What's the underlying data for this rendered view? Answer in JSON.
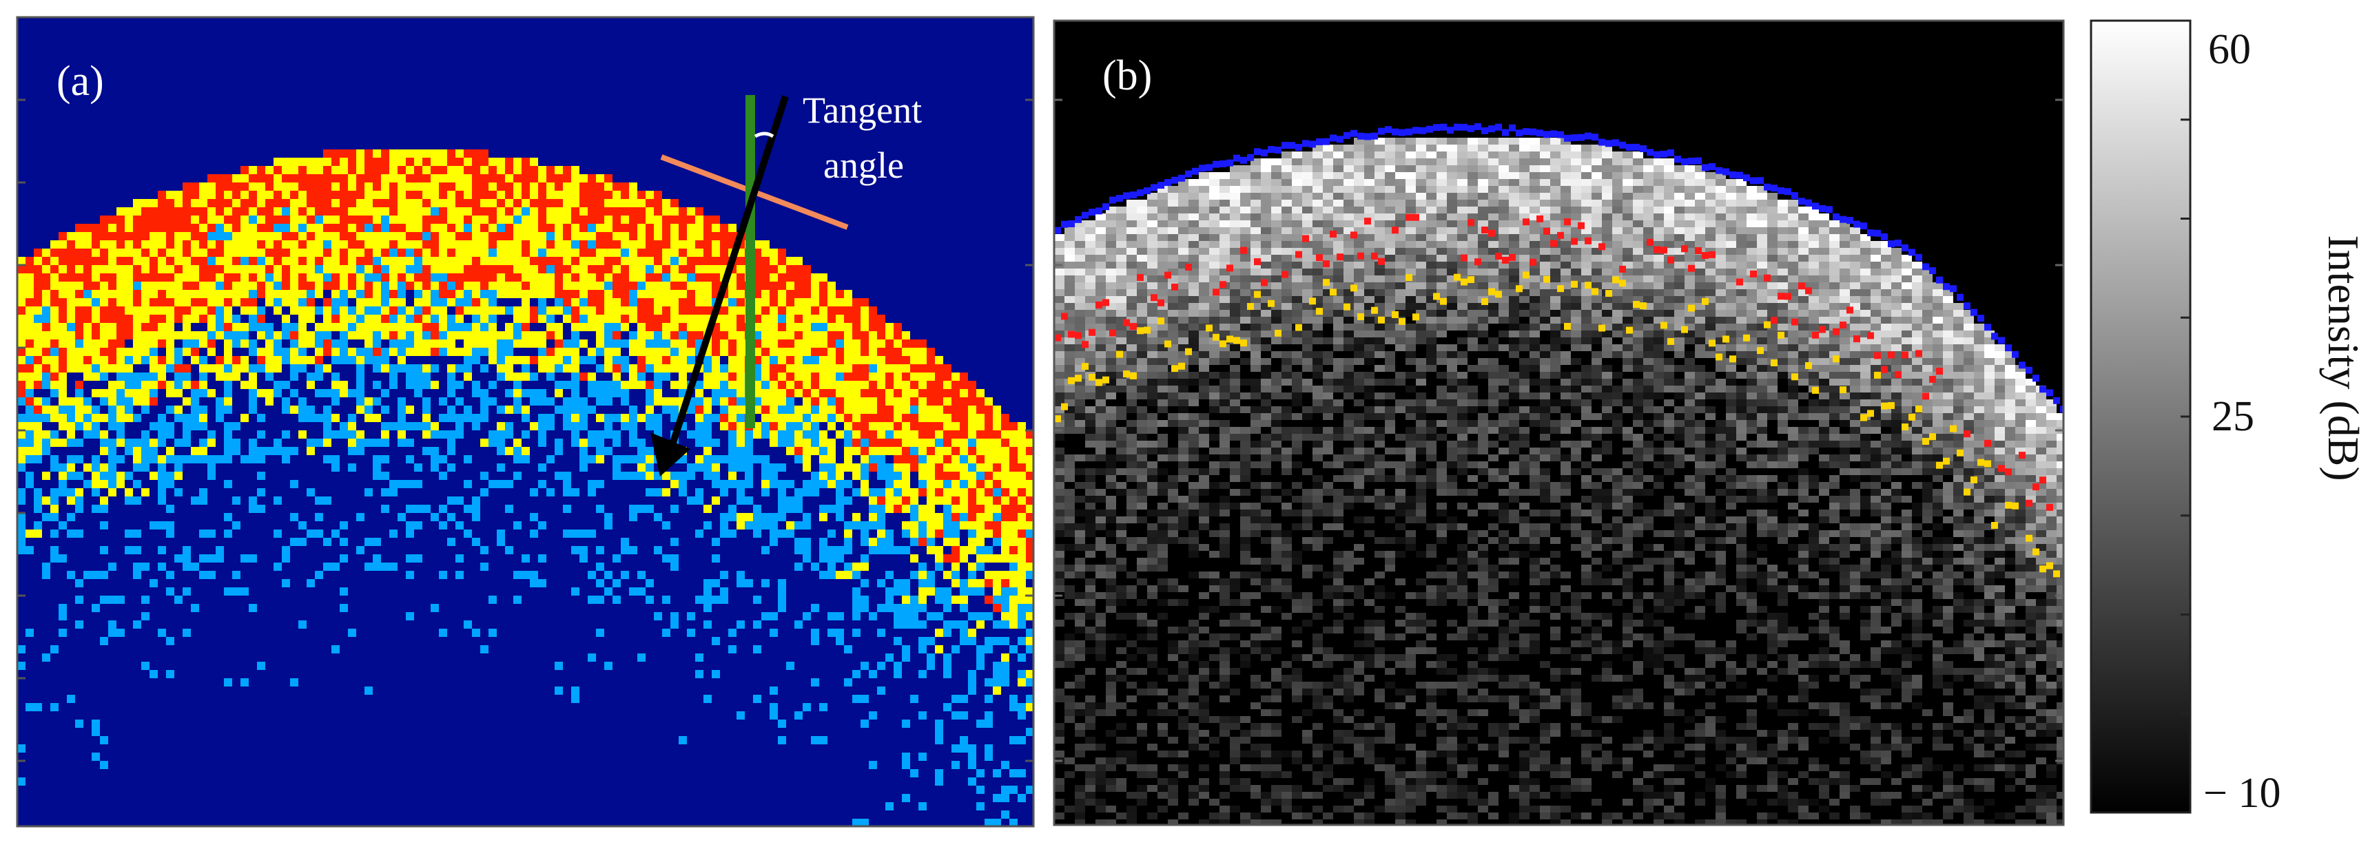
{
  "panel_a": {
    "label": "(a)",
    "annotation_line1": "Tangent",
    "annotation_line2": "angle",
    "colors": {
      "background": "#000b8f",
      "level1": "#00a6ff",
      "level2": "#ffff00",
      "level3": "#ff2200",
      "tangent_line": "#f28a5a",
      "normal_line": "#2f8a1f",
      "arrow": "#000000"
    }
  },
  "panel_b": {
    "label": "(b)",
    "colors": {
      "background": "#000000",
      "surface_boundary": "#1a1aff",
      "boundary_1": "#ff1a1a",
      "boundary_2": "#ffd500"
    }
  },
  "colorbar": {
    "label": "Intensity (dB)",
    "ticks": [
      "60",
      "25",
      "− 10"
    ],
    "tick_values": [
      60,
      25,
      -10
    ],
    "range": [
      -10,
      60
    ]
  }
}
